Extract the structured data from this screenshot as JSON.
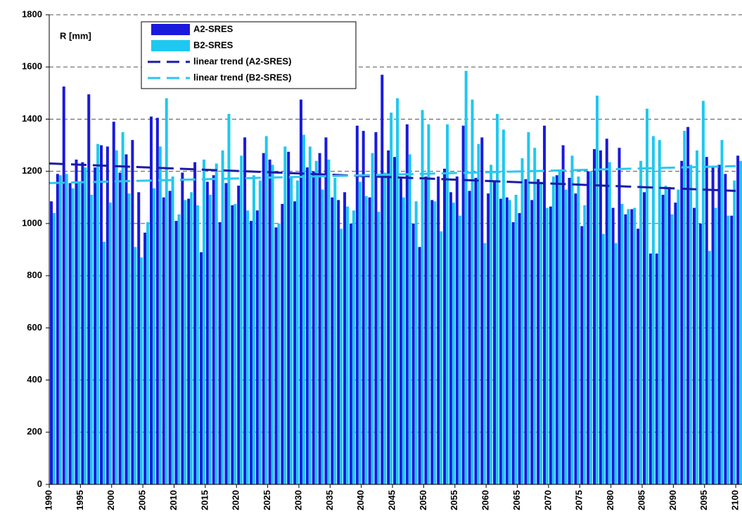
{
  "chart_data": {
    "type": "bar",
    "annotation": "R [mm]",
    "x": [
      1990,
      1991,
      1992,
      1993,
      1994,
      1995,
      1996,
      1997,
      1998,
      1999,
      2000,
      2001,
      2002,
      2003,
      2004,
      2005,
      2006,
      2007,
      2008,
      2009,
      2010,
      2011,
      2012,
      2013,
      2014,
      2015,
      2016,
      2017,
      2018,
      2019,
      2020,
      2021,
      2022,
      2023,
      2024,
      2025,
      2026,
      2027,
      2028,
      2029,
      2030,
      2031,
      2032,
      2033,
      2034,
      2035,
      2036,
      2037,
      2038,
      2039,
      2040,
      2041,
      2042,
      2043,
      2044,
      2045,
      2046,
      2047,
      2048,
      2049,
      2050,
      2051,
      2052,
      2053,
      2054,
      2055,
      2056,
      2057,
      2058,
      2059,
      2060,
      2061,
      2062,
      2063,
      2064,
      2065,
      2066,
      2067,
      2068,
      2069,
      2070,
      2071,
      2072,
      2073,
      2074,
      2075,
      2076,
      2077,
      2078,
      2079,
      2080,
      2081,
      2082,
      2083,
      2084,
      2085,
      2086,
      2087,
      2088,
      2089,
      2090,
      2091,
      2092,
      2093,
      2094,
      2095,
      2096,
      2097,
      2098,
      2099,
      2100
    ],
    "series": [
      {
        "name": "A2-SRES",
        "color": "#1a1adc",
        "values": [
          1085,
          1190,
          1525,
          1155,
          1245,
          1235,
          1495,
          1215,
          1300,
          1295,
          1390,
          1195,
          1265,
          1320,
          1120,
          965,
          1410,
          1405,
          1100,
          1125,
          1010,
          1195,
          1095,
          1235,
          890,
          1160,
          1185,
          1005,
          1155,
          1070,
          1145,
          1330,
          1010,
          1050,
          1270,
          1245,
          985,
          1075,
          1275,
          1085,
          1475,
          1215,
          1200,
          1270,
          1330,
          1100,
          1090,
          1120,
          1000,
          1375,
          1355,
          1100,
          1350,
          1570,
          1280,
          1255,
          1175,
          1380,
          1000,
          910,
          1180,
          1090,
          1180,
          1210,
          1120,
          1180,
          1375,
          1125,
          1175,
          1330,
          1115,
          1160,
          1095,
          1100,
          1005,
          1040,
          1170,
          1090,
          1170,
          1375,
          1065,
          1185,
          1300,
          1175,
          1115,
          990,
          1200,
          1285,
          1280,
          1325,
          1060,
          1290,
          1035,
          1055,
          980,
          1120,
          885,
          885,
          1110,
          1140,
          1080,
          1240,
          1370,
          1060,
          1000,
          1255,
          1215,
          1225,
          1190,
          1030,
          1260
        ]
      },
      {
        "name": "B2-SRES",
        "color": "#1ec8f0",
        "values": [
          1040,
          1185,
          1190,
          1135,
          1160,
          1215,
          1110,
          1305,
          930,
          1080,
          1280,
          1350,
          1115,
          910,
          870,
          1005,
          1135,
          1295,
          1480,
          1180,
          1035,
          1090,
          1120,
          1070,
          1245,
          1110,
          1230,
          1280,
          1420,
          1075,
          1260,
          1050,
          1185,
          1165,
          1335,
          1225,
          1000,
          1295,
          1175,
          1165,
          1340,
          1295,
          1240,
          1130,
          1245,
          1175,
          980,
          1065,
          1050,
          1160,
          1105,
          1270,
          1045,
          1195,
          1425,
          1480,
          1100,
          1265,
          1085,
          1435,
          1380,
          1085,
          970,
          1380,
          1080,
          1030,
          1585,
          1475,
          1305,
          925,
          1225,
          1420,
          1360,
          1090,
          1110,
          1250,
          1350,
          1290,
          1160,
          1060,
          1180,
          1200,
          1130,
          1260,
          1180,
          1070,
          1200,
          1490,
          960,
          1235,
          925,
          1075,
          1055,
          1060,
          1240,
          1440,
          1335,
          1320,
          1145,
          1035,
          1130,
          1355,
          1225,
          1280,
          1470,
          895,
          1060,
          1320,
          1030,
          1165,
          1240
        ]
      },
      {
        "name": "linear trend (A2-SRES)",
        "type": "line",
        "color": "#1a1aa8",
        "x": [
          1990,
          2100
        ],
        "values": [
          1230,
          1125
        ]
      },
      {
        "name": "linear trend (B2-SRES)",
        "type": "line",
        "color": "#2ec6f0",
        "x": [
          1990,
          2100
        ],
        "values": [
          1155,
          1220
        ]
      }
    ],
    "xlim": [
      1990,
      2101
    ],
    "xticks": [
      1990,
      1995,
      2000,
      2005,
      2010,
      2015,
      2020,
      2025,
      2030,
      2035,
      2040,
      2045,
      2050,
      2055,
      2060,
      2065,
      2070,
      2075,
      2080,
      2085,
      2090,
      2095,
      2100
    ],
    "ylim": [
      0,
      1800
    ],
    "yticks": [
      0,
      200,
      400,
      600,
      800,
      1000,
      1200,
      1400,
      1600,
      1800
    ],
    "grid": true
  }
}
